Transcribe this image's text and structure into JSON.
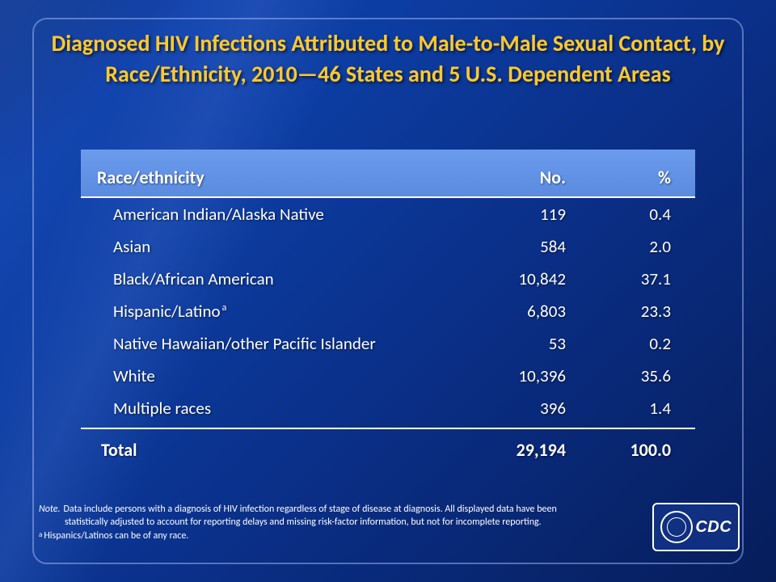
{
  "title": "Diagnosed HIV Infections Attributed to Male-to-Male Sexual Contact, by Race/Ethnicity, 2010—46 States and 5 U.S. Dependent Areas",
  "table": {
    "type": "table",
    "headers": {
      "col1": "Race/ethnicity",
      "col2": "No.",
      "col3": "%"
    },
    "rows": [
      {
        "label": "American Indian/Alaska Native",
        "no": "119",
        "pct": "0.4",
        "sup": ""
      },
      {
        "label": "Asian",
        "no": "584",
        "pct": "2.0",
        "sup": ""
      },
      {
        "label": "Black/African American",
        "no": "10,842",
        "pct": "37.1",
        "sup": ""
      },
      {
        "label": "Hispanic/Latino",
        "no": "6,803",
        "pct": "23.3",
        "sup": "a"
      },
      {
        "label": "Native Hawaiian/other Pacific Islander",
        "no": "53",
        "pct": "0.2",
        "sup": ""
      },
      {
        "label": "White",
        "no": "10,396",
        "pct": "35.6",
        "sup": ""
      },
      {
        "label": "Multiple races",
        "no": "396",
        "pct": "1.4",
        "sup": ""
      }
    ],
    "total": {
      "label": "Total",
      "no": "29,194",
      "pct": "100.0"
    }
  },
  "footnote": {
    "note_label": "Note.",
    "note_line1": "Data include persons with a diagnosis of HIV infection regardless of stage of disease at diagnosis. All displayed data have been",
    "note_line2": "statistically adjusted to account for reporting delays and missing risk-factor information, but not for incomplete reporting.",
    "a_label": "a",
    "a_text": "Hispanics/Latinos can be of any race."
  },
  "logo": {
    "cdc": "CDC"
  },
  "colors": {
    "title_color": "#ffc92e",
    "header_bg": "#5f90e6",
    "background_gradient": [
      "#0a2a6e",
      "#0d3fa8",
      "#061d5a"
    ],
    "text_color": "#ffffff",
    "frame_border": "rgba(180,200,255,0.45)"
  },
  "typography": {
    "title_fontsize": 28,
    "header_fontsize": 22,
    "row_fontsize": 21,
    "footnote_fontsize": 12
  }
}
